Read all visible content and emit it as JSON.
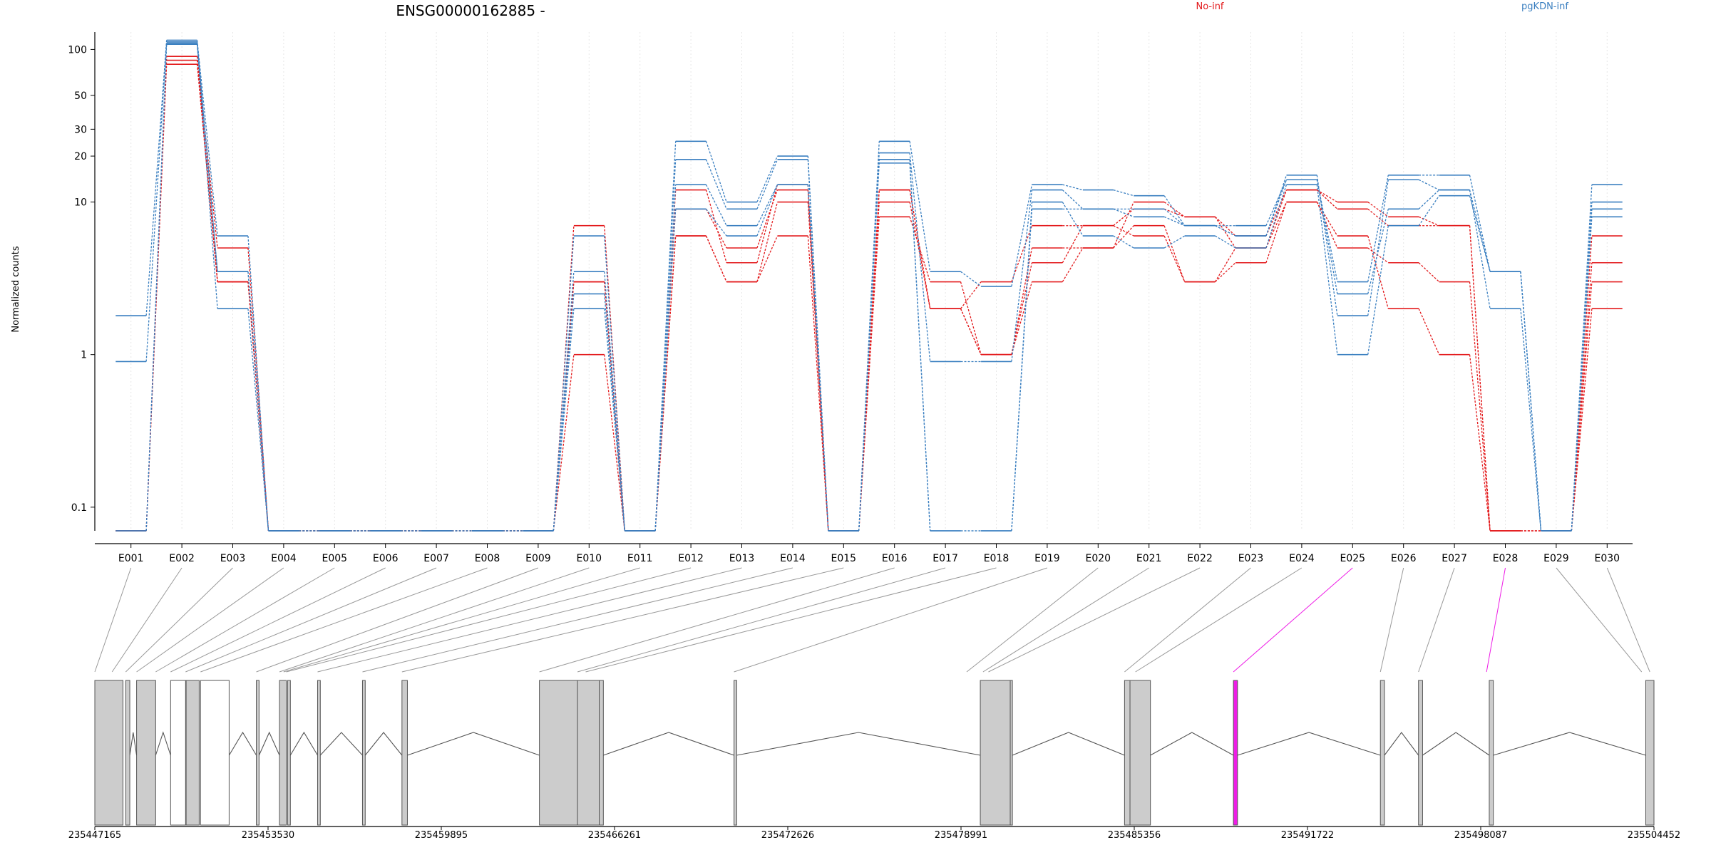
{
  "chart_data": {
    "type": "line",
    "title": "ENSG00000162885 -",
    "ylabel": "Normalized counts",
    "xlabel": "",
    "y_scale": "log",
    "ylim": [
      0.07,
      130
    ],
    "y_ticks": [
      0.1,
      1,
      10,
      20,
      30,
      50,
      100
    ],
    "y_tick_labels": [
      "0.1",
      "1",
      "10",
      "20",
      "30",
      "50",
      "100"
    ],
    "grid": "vertical-dotted",
    "legend_position": "top-right",
    "colors": {
      "No-inf": "#e31a1c",
      "pgKDN-inf": "#3a7fc0"
    },
    "categories": [
      "E001",
      "E002",
      "E003",
      "E004",
      "E005",
      "E006",
      "E007",
      "E008",
      "E009",
      "E010",
      "E011",
      "E012",
      "E013",
      "E014",
      "E015",
      "E016",
      "E017",
      "E018",
      "E019",
      "E020",
      "E021",
      "E022",
      "E023",
      "E024",
      "E025",
      "E026",
      "E027",
      "E028",
      "E029",
      "E030"
    ],
    "series": [
      {
        "name": "No-inf",
        "values": [
          0.07,
          90,
          5,
          0.07,
          0.07,
          0.07,
          0.07,
          0.07,
          0.07,
          7,
          0.07,
          12,
          4,
          13,
          0.07,
          12,
          2,
          1,
          3,
          5,
          10,
          8,
          6,
          12,
          10,
          8,
          7,
          0.07,
          0.07,
          6
        ]
      },
      {
        "name": "No-inf",
        "values": [
          0.07,
          85,
          3,
          0.07,
          0.07,
          0.07,
          0.07,
          0.07,
          0.07,
          3,
          0.07,
          9,
          5,
          12,
          0.07,
          10,
          2,
          1,
          4,
          7,
          9,
          8,
          5,
          12,
          9,
          7,
          7,
          0.07,
          0.07,
          4
        ]
      },
      {
        "name": "No-inf",
        "values": [
          0.07,
          80,
          3,
          0.07,
          0.07,
          0.07,
          0.07,
          0.07,
          0.07,
          1,
          0.07,
          6,
          3,
          10,
          0.07,
          8,
          3,
          1,
          5,
          5,
          7,
          3,
          4,
          10,
          6,
          2,
          1,
          0.07,
          0.07,
          3
        ]
      },
      {
        "name": "No-inf",
        "values": [
          0.07,
          90,
          3,
          0.07,
          0.07,
          0.07,
          0.07,
          0.07,
          0.07,
          3,
          0.07,
          6,
          3,
          6,
          0.07,
          12,
          2,
          3,
          7,
          7,
          6,
          3,
          5,
          10,
          5,
          4,
          3,
          0.07,
          0.07,
          2
        ]
      },
      {
        "name": "pgKDN-inf",
        "values": [
          1.8,
          115,
          6,
          0.07,
          0.07,
          0.07,
          0.07,
          0.07,
          0.07,
          6,
          0.07,
          25,
          10,
          20,
          0.07,
          25,
          3.5,
          2.8,
          13,
          12,
          11,
          7,
          6,
          14,
          3,
          15,
          15,
          3.5,
          0.07,
          13
        ]
      },
      {
        "name": "pgKDN-inf",
        "values": [
          0.9,
          112,
          3.5,
          0.07,
          0.07,
          0.07,
          0.07,
          0.07,
          0.07,
          3.5,
          0.07,
          19,
          9,
          19,
          0.07,
          21,
          0.9,
          0.9,
          12,
          9,
          9,
          7,
          7,
          14,
          2.5,
          9,
          12,
          2,
          0.07,
          10
        ]
      },
      {
        "name": "pgKDN-inf",
        "values": [
          0.07,
          108,
          2,
          0.07,
          0.07,
          0.07,
          0.07,
          0.07,
          0.07,
          2.5,
          0.07,
          13,
          7,
          13,
          0.07,
          19,
          0.07,
          0.07,
          10,
          6,
          5,
          6,
          5,
          13,
          1,
          7,
          11,
          3.5,
          0.07,
          9
        ]
      },
      {
        "name": "pgKDN-inf",
        "values": [
          0.07,
          110,
          3.5,
          0.07,
          0.07,
          0.07,
          0.07,
          0.07,
          0.07,
          2,
          0.07,
          9,
          6,
          13,
          0.07,
          18,
          0.07,
          0.07,
          9,
          9,
          8,
          7,
          6,
          15,
          1.8,
          14,
          12,
          3.5,
          0.07,
          8
        ]
      }
    ],
    "genomic_coordinates": [
      "235447165",
      "235453530",
      "235459895",
      "235466261",
      "235472626",
      "235478991",
      "235485356",
      "235491722",
      "235498087",
      "235504452"
    ],
    "gene_range": [
      235447165,
      235504452
    ],
    "highlight_color": "#ee1ce6",
    "highlighted_exons": [
      "E025",
      "E028"
    ],
    "exon_spans": [
      [
        235447165,
        235448200
      ],
      [
        235448300,
        235448450
      ],
      [
        235448700,
        235449400
      ],
      [
        235449950,
        235450500
      ],
      [
        235450520,
        235451000
      ],
      [
        235451050,
        235452100
      ],
      [
        235453100,
        235453200
      ],
      [
        235453950,
        235454200
      ],
      [
        235454250,
        235454350
      ],
      [
        235455350,
        235455450
      ],
      [
        235457000,
        235457100
      ],
      [
        235458450,
        235458650
      ],
      [
        235463500,
        235464900
      ],
      [
        235464900,
        235465700
      ],
      [
        235465700,
        235465850
      ],
      [
        235470650,
        235470750
      ],
      [
        235479700,
        235480800
      ],
      [
        235480800,
        235480880
      ],
      [
        235485000,
        235485200
      ],
      [
        235485200,
        235485950
      ],
      [
        235489000,
        235489150
      ],
      [
        235494400,
        235494550
      ],
      [
        235495800,
        235495950
      ],
      [
        235498400,
        235498550
      ],
      [
        235504150,
        235504452
      ]
    ],
    "exon_link_targets": [
      235447165,
      235447800,
      235448300,
      235448700,
      235449400,
      235449950,
      235450500,
      235451050,
      235453100,
      235453950,
      235454100,
      235454200,
      235455350,
      235457000,
      235458450,
      235463500,
      235464900,
      235465200,
      235470650,
      235479200,
      235479800,
      235480000,
      235485000,
      235485400,
      235489000,
      235494400,
      235495800,
      235498300,
      235504000,
      235504300
    ]
  },
  "legend": [
    {
      "label": "No-inf",
      "color": "#e31a1c"
    },
    {
      "label": "pgKDN-inf",
      "color": "#3a7fc0"
    }
  ]
}
